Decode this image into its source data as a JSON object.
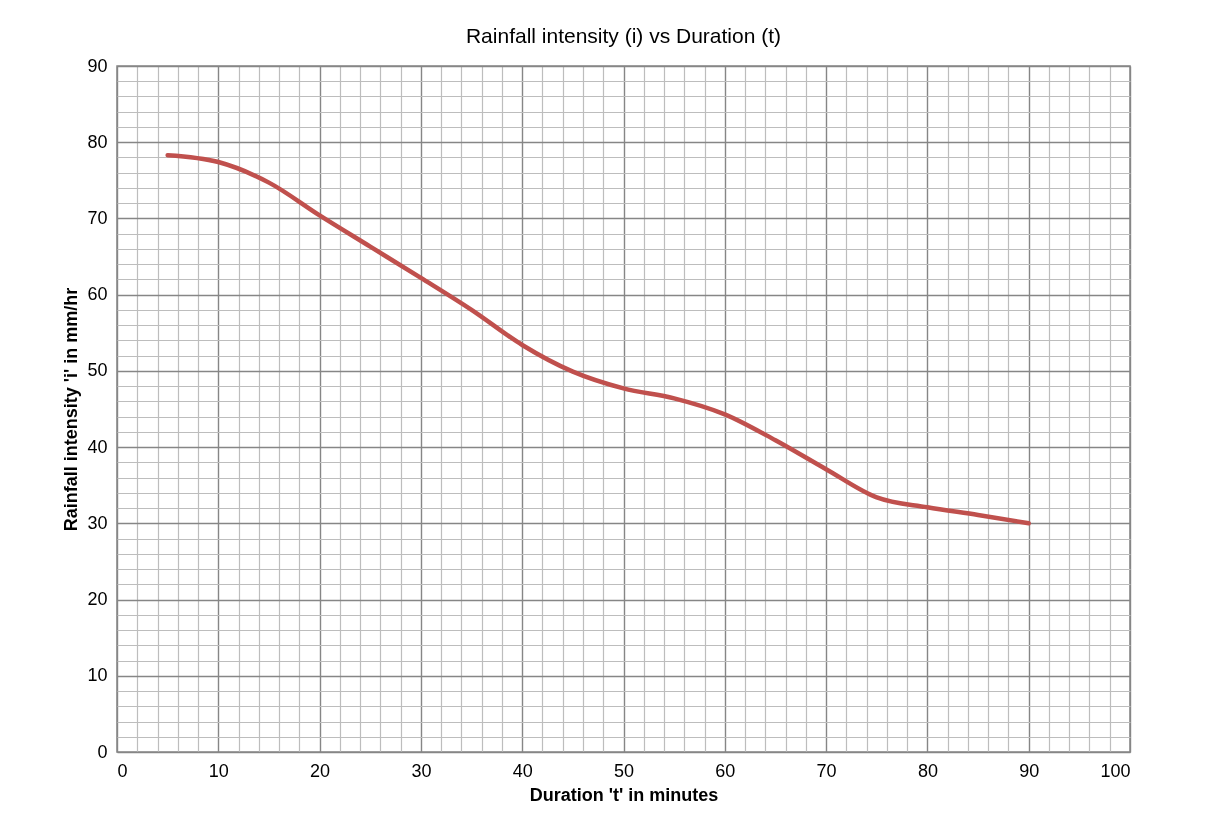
{
  "chart_data": {
    "type": "line",
    "title": "Rainfall intensity (i) vs Duration (t)",
    "xlabel": "Duration 't' in minutes",
    "ylabel": "Rainfall intensity 'i' in mm/hr",
    "x": [
      5,
      10,
      15,
      20,
      25,
      30,
      35,
      40,
      45,
      50,
      55,
      60,
      65,
      70,
      75,
      80,
      85,
      90
    ],
    "series": [
      {
        "color": "#c0504d",
        "values": [
          78.3,
          77.4,
          74.7,
          70.4,
          66.3,
          62.2,
          58,
          53.4,
          49.9,
          47.7,
          46.4,
          44.3,
          40.9,
          37.1,
          33.4,
          32.1,
          31.1,
          30
        ]
      }
    ],
    "xlim": [
      0,
      100
    ],
    "ylim": [
      0,
      90
    ],
    "xticks": [
      0,
      {
        "value": 2,
        "label": null
      },
      {
        "value": 4,
        "label": null
      },
      {
        "value": 6,
        "label": null
      },
      {
        "value": 8,
        "label": null
      },
      10,
      {
        "value": 12,
        "label": null
      },
      {
        "value": 14,
        "label": null
      },
      {
        "value": 16,
        "label": null
      },
      {
        "value": 18,
        "label": null
      },
      20,
      {
        "value": 22,
        "label": null
      },
      {
        "value": 24,
        "label": null
      },
      {
        "value": 26,
        "label": null
      },
      {
        "value": 28,
        "label": null
      },
      30,
      {
        "value": 32,
        "label": null
      },
      {
        "value": 34,
        "label": null
      },
      {
        "value": 36,
        "label": null
      },
      {
        "value": 38,
        "label": null
      },
      40,
      {
        "value": 42,
        "label": null
      },
      {
        "value": 44,
        "label": null
      },
      {
        "value": 46,
        "label": null
      },
      {
        "value": 48,
        "label": null
      },
      50,
      {
        "value": 52,
        "label": null
      },
      {
        "value": 54,
        "label": null
      },
      {
        "value": 56,
        "label": null
      },
      {
        "value": 58,
        "label": null
      },
      60,
      {
        "value": 62,
        "label": null
      },
      {
        "value": 64,
        "label": null
      },
      {
        "value": 66,
        "label": null
      },
      {
        "value": 68,
        "label": null
      },
      70,
      {
        "value": 72,
        "label": null
      },
      {
        "value": 74,
        "label": null
      },
      {
        "value": 76,
        "label": null
      },
      {
        "value": 78,
        "label": null
      },
      80,
      {
        "value": 82,
        "label": null
      },
      {
        "value": 84,
        "label": null
      },
      {
        "value": 86,
        "label": null
      },
      {
        "value": 88,
        "label": null
      },
      90,
      {
        "value": 92,
        "label": null
      },
      {
        "value": 94,
        "label": null
      },
      {
        "value": 96,
        "label": null
      },
      {
        "value": 98,
        "label": null
      },
      100
    ],
    "yticks": [
      0,
      {
        "value": 2,
        "label": null
      },
      {
        "value": 4,
        "label": null
      },
      {
        "value": 6,
        "label": null
      },
      {
        "value": 8,
        "label": null
      },
      10,
      {
        "value": 12,
        "label": null
      },
      {
        "value": 14,
        "label": null
      },
      {
        "value": 16,
        "label": null
      },
      {
        "value": 18,
        "label": null
      },
      20,
      {
        "value": 22,
        "label": null
      },
      {
        "value": 24,
        "label": null
      },
      {
        "value": 26,
        "label": null
      },
      {
        "value": 28,
        "label": null
      },
      30,
      {
        "value": 32,
        "label": null
      },
      {
        "value": 34,
        "label": null
      },
      {
        "value": 36,
        "label": null
      },
      {
        "value": 38,
        "label": null
      },
      40,
      {
        "value": 42,
        "label": null
      },
      {
        "value": 44,
        "label": null
      },
      {
        "value": 46,
        "label": null
      },
      {
        "value": 48,
        "label": null
      },
      50,
      {
        "value": 52,
        "label": null
      },
      {
        "value": 54,
        "label": null
      },
      {
        "value": 56,
        "label": null
      },
      {
        "value": 58,
        "label": null
      },
      60,
      {
        "value": 62,
        "label": null
      },
      {
        "value": 64,
        "label": null
      },
      {
        "value": 66,
        "label": null
      },
      {
        "value": 68,
        "label": null
      },
      70,
      {
        "value": 72,
        "label": null
      },
      {
        "value": 74,
        "label": null
      },
      {
        "value": 76,
        "label": null
      },
      {
        "value": 78,
        "label": null
      },
      80,
      {
        "value": 82,
        "label": null
      },
      {
        "value": 84,
        "label": null
      },
      {
        "value": 86,
        "label": null
      },
      {
        "value": 88,
        "label": null
      },
      90
    ],
    "grid": true,
    "marker": "none",
    "line_style": "solid"
  }
}
